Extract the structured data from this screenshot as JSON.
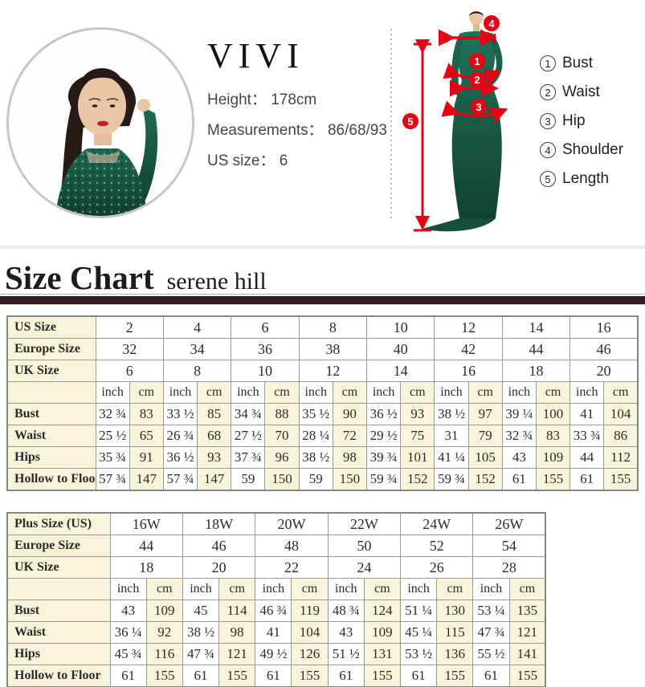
{
  "top": {
    "brand": "VIVI",
    "colon": "：",
    "info": [
      {
        "label": "Height",
        "value": "178cm"
      },
      {
        "label": "Measurements",
        "value": "86/68/93"
      },
      {
        "label": "US size",
        "value": "6"
      }
    ],
    "figure_badges": [
      "1",
      "2",
      "3",
      "4",
      "5"
    ],
    "legend": [
      {
        "num": "1",
        "label": "Bust"
      },
      {
        "num": "2",
        "label": "Waist"
      },
      {
        "num": "3",
        "label": "Hip"
      },
      {
        "num": "4",
        "label": "Shoulder"
      },
      {
        "num": "5",
        "label": "Length"
      }
    ]
  },
  "heading": {
    "title": "Size Chart",
    "subtitle": "serene hill"
  },
  "colors": {
    "accent_red": "#e60013",
    "cream": "#f7f4d9",
    "bar_brown": "#32211a",
    "dress_green": "#1a5c47",
    "border_gray": "#9a9a9a"
  },
  "tables": [
    {
      "size_rows": [
        {
          "label": "US Size",
          "values": [
            "2",
            "4",
            "6",
            "8",
            "10",
            "12",
            "14",
            "16"
          ]
        },
        {
          "label": "Europe Size",
          "values": [
            "32",
            "34",
            "36",
            "38",
            "40",
            "42",
            "44",
            "46"
          ]
        },
        {
          "label": "UK Size",
          "values": [
            "6",
            "8",
            "10",
            "12",
            "14",
            "16",
            "18",
            "20"
          ]
        }
      ],
      "units": {
        "inch": "inch",
        "cm": "cm"
      },
      "measure_rows": [
        {
          "label": "Bust",
          "inch": [
            "32 ¾",
            "33 ½",
            "34 ¾",
            "35 ½",
            "36 ½",
            "38 ½",
            "39 ¼",
            "41"
          ],
          "cm": [
            "83",
            "85",
            "88",
            "90",
            "93",
            "97",
            "100",
            "104"
          ]
        },
        {
          "label": "Waist",
          "inch": [
            "25 ½",
            "26 ¾",
            "27 ½",
            "28 ¼",
            "29 ½",
            "31",
            "32 ¾",
            "33 ¾"
          ],
          "cm": [
            "65",
            "68",
            "70",
            "72",
            "75",
            "79",
            "83",
            "86"
          ]
        },
        {
          "label": "Hips",
          "inch": [
            "35 ¾",
            "36 ½",
            "37 ¾",
            "38 ½",
            "39 ¾",
            "41 ¼",
            "43",
            "44"
          ],
          "cm": [
            "91",
            "93",
            "96",
            "98",
            "101",
            "105",
            "109",
            "112"
          ]
        },
        {
          "label": "Hollow to Floor",
          "inch": [
            "57 ¾",
            "57 ¾",
            "59",
            "59",
            "59 ¾",
            "59 ¾",
            "61",
            "61"
          ],
          "cm": [
            "147",
            "147",
            "150",
            "150",
            "152",
            "152",
            "155",
            "155"
          ]
        }
      ]
    },
    {
      "size_rows": [
        {
          "label": "Plus Size (US)",
          "values": [
            "16W",
            "18W",
            "20W",
            "22W",
            "24W",
            "26W"
          ]
        },
        {
          "label": "Europe Size",
          "values": [
            "44",
            "46",
            "48",
            "50",
            "52",
            "54"
          ]
        },
        {
          "label": "UK Size",
          "values": [
            "18",
            "20",
            "22",
            "24",
            "26",
            "28"
          ]
        }
      ],
      "units": {
        "inch": "inch",
        "cm": "cm"
      },
      "measure_rows": [
        {
          "label": "Bust",
          "inch": [
            "43",
            "45",
            "46 ¾",
            "48 ¾",
            "51 ¼",
            "53 ¼"
          ],
          "cm": [
            "109",
            "114",
            "119",
            "124",
            "130",
            "135"
          ]
        },
        {
          "label": "Waist",
          "inch": [
            "36 ¼",
            "38 ½",
            "41",
            "43",
            "45 ¼",
            "47 ¾"
          ],
          "cm": [
            "92",
            "98",
            "104",
            "109",
            "115",
            "121"
          ]
        },
        {
          "label": "Hips",
          "inch": [
            "45 ¾",
            "47 ¾",
            "49 ½",
            "51 ½",
            "53 ½",
            "55 ½"
          ],
          "cm": [
            "116",
            "121",
            "126",
            "131",
            "136",
            "141"
          ]
        },
        {
          "label": "Hollow to Floor",
          "inch": [
            "61",
            "61",
            "61",
            "61",
            "61",
            "61"
          ],
          "cm": [
            "155",
            "155",
            "155",
            "155",
            "155",
            "155"
          ]
        }
      ]
    }
  ]
}
